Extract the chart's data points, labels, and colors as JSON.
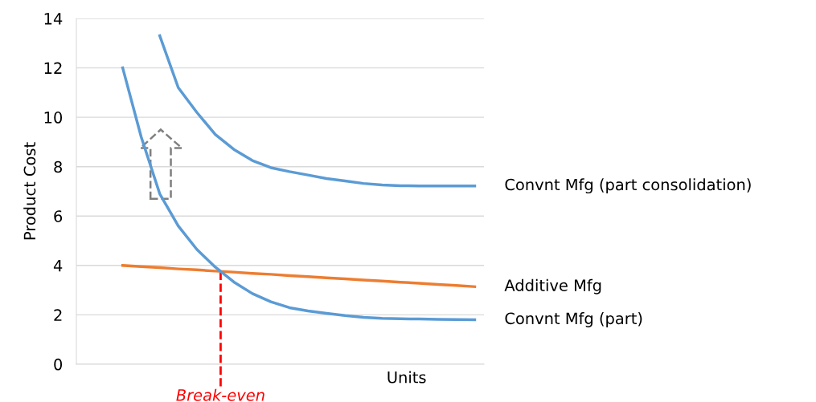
{
  "chart_data": {
    "type": "line",
    "ylabel": "Product Cost",
    "xlabel": "Units",
    "categories": [
      null,
      null,
      null,
      null,
      null,
      null,
      null,
      null,
      null,
      null,
      null,
      null,
      null,
      null,
      null,
      null,
      null,
      null,
      null,
      null,
      null,
      null
    ],
    "ylim": [
      0,
      14
    ],
    "yticks": [
      0,
      2,
      4,
      6,
      8,
      10,
      12,
      14
    ],
    "grid": "y",
    "legend": false,
    "marker": "none",
    "line_style": "solid",
    "tick_labels": "y",
    "series": [
      {
        "name": "Convnt Mfg (part consolidation)",
        "color": "#5b9bd5",
        "values": [
          null,
          null,
          null,
          null,
          13.3,
          11.2,
          10.2,
          9.3,
          8.7,
          8.25,
          7.96,
          7.8,
          7.66,
          7.52,
          7.42,
          7.32,
          7.26,
          7.23,
          7.22,
          7.22,
          7.22,
          7.22
        ]
      },
      {
        "name": "Additive Mfg",
        "color": "#ed7d31",
        "values": [
          null,
          null,
          4.0,
          3.95,
          3.91,
          3.86,
          3.82,
          3.77,
          3.73,
          3.68,
          3.64,
          3.59,
          3.55,
          3.5,
          3.46,
          3.41,
          3.37,
          3.32,
          3.28,
          3.23,
          3.19,
          3.14
        ]
      },
      {
        "name": "Convnt Mfg (part)",
        "color": "#5b9bd5",
        "values": [
          null,
          null,
          12.0,
          9.2,
          6.9,
          5.6,
          4.65,
          3.93,
          3.33,
          2.86,
          2.53,
          2.29,
          2.16,
          2.06,
          1.97,
          1.9,
          1.86,
          1.84,
          1.83,
          1.82,
          1.81,
          1.8
        ]
      }
    ],
    "annotations": [
      {
        "text": "Break-even",
        "y": 3.75
      }
    ]
  }
}
